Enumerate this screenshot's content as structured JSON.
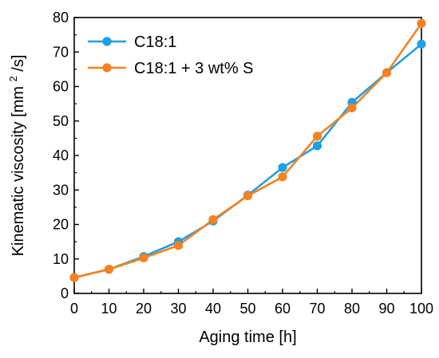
{
  "chart_data": {
    "type": "line",
    "title": "",
    "xlabel": "Aging time [h]",
    "ylabel": {
      "prefix": "Kinematic viscosity [mm",
      "superscript": "2",
      "suffix": "/s]"
    },
    "xlim": [
      0,
      100
    ],
    "ylim": [
      0,
      80
    ],
    "xticks": [
      0,
      10,
      20,
      30,
      40,
      50,
      60,
      70,
      80,
      90,
      100
    ],
    "yticks": [
      0,
      10,
      20,
      30,
      40,
      50,
      60,
      70,
      80
    ],
    "legend_position": "top-left",
    "grid": false,
    "x": [
      0,
      10,
      20,
      30,
      40,
      50,
      60,
      70,
      80,
      90,
      100
    ],
    "series": [
      {
        "name": "C18:1",
        "color": "#1EA0E6",
        "values": [
          4.6,
          7.0,
          10.7,
          15.0,
          21.0,
          28.5,
          36.5,
          42.8,
          55.4,
          64.0,
          72.3
        ]
      },
      {
        "name": "C18:1 + 3 wt% S",
        "color": "#F58220",
        "values": [
          4.6,
          7.0,
          10.3,
          13.9,
          21.4,
          28.3,
          33.8,
          45.6,
          53.8,
          64.0,
          78.3
        ]
      }
    ]
  }
}
